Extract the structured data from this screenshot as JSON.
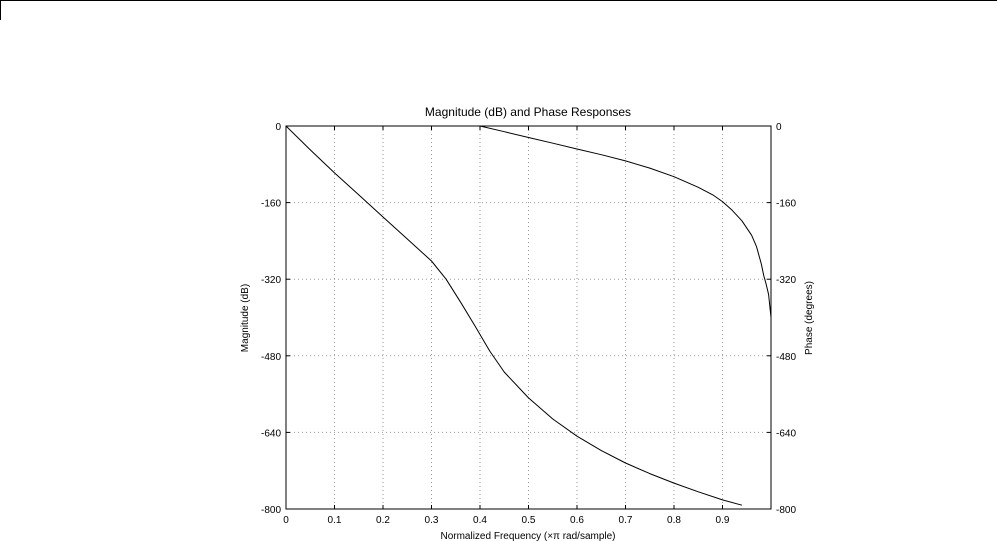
{
  "colors": {
    "background": "#ffffff",
    "axes": "#000000",
    "grid": "#9a9a9a",
    "magnitude_line": "#000000",
    "phase_line": "#000000"
  },
  "chart_data": {
    "type": "line",
    "title": "Magnitude (dB) and Phase Responses",
    "xlabel": "Normalized Frequency (×π rad/sample)",
    "ylabel": "Magnitude (dB)",
    "ylabel_right": "Phase (degrees)",
    "xlim": [
      0,
      1
    ],
    "ylim": [
      -800,
      0
    ],
    "ylim_right": [
      -800,
      0
    ],
    "grid": true,
    "x_ticks": [
      "0",
      "0.1",
      "0.2",
      "0.3",
      "0.4",
      "0.5",
      "0.6",
      "0.7",
      "0.8",
      "0.9"
    ],
    "y_ticks": [
      "0",
      "-160",
      "-320",
      "-480",
      "-640",
      "-800"
    ],
    "y_ticks_right": [
      "0",
      "-160",
      "-320",
      "-480",
      "-640",
      "-800"
    ],
    "series": [
      {
        "axis": "left",
        "x": [
          0,
          0.05,
          0.1,
          0.15,
          0.2,
          0.25,
          0.3,
          0.33,
          0.36,
          0.39,
          0.42,
          0.45,
          0.5,
          0.55,
          0.6,
          0.65,
          0.7,
          0.75,
          0.8,
          0.85,
          0.9,
          0.94
        ],
        "y": [
          0,
          -50,
          -98,
          -144,
          -190,
          -236,
          -282,
          -320,
          -368,
          -418,
          -470,
          -514,
          -568,
          -612,
          -648,
          -678,
          -704,
          -726,
          -746,
          -764,
          -781,
          -792
        ]
      },
      {
        "axis": "right",
        "x": [
          0.4,
          0.45,
          0.5,
          0.55,
          0.6,
          0.65,
          0.7,
          0.75,
          0.8,
          0.85,
          0.88,
          0.9,
          0.92,
          0.94,
          0.96,
          0.97,
          0.98,
          0.985,
          0.99,
          0.995,
          1.0
        ],
        "y": [
          0,
          -12,
          -24,
          -36,
          -48,
          -60,
          -73,
          -88,
          -106,
          -128,
          -144,
          -158,
          -176,
          -198,
          -228,
          -252,
          -288,
          -312,
          -330,
          -352,
          -400
        ]
      }
    ]
  }
}
